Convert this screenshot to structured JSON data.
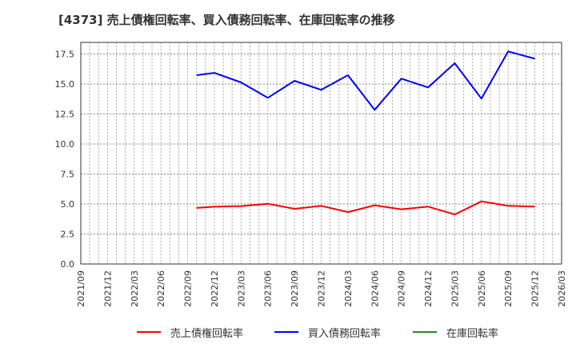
{
  "title": "[4373]  売上債権回転率、買入債務回転率、在庫回転率の推移",
  "chart_data": {
    "type": "line",
    "title": "[4373]  売上債権回転率、買入債務回転率、在庫回転率の推移",
    "xlabel": "",
    "ylabel": "",
    "ylim": [
      0,
      18.5
    ],
    "yticks": [
      "0.0",
      "2.5",
      "5.0",
      "7.5",
      "10.0",
      "12.5",
      "15.0",
      "17.5"
    ],
    "ytick_values": [
      0,
      2.5,
      5.0,
      7.5,
      10.0,
      12.5,
      15.0,
      17.5
    ],
    "xticks": [
      "2021/09",
      "2021/12",
      "2022/03",
      "2022/06",
      "2022/09",
      "2022/12",
      "2023/03",
      "2023/06",
      "2023/09",
      "2023/12",
      "2024/03",
      "2024/06",
      "2024/09",
      "2024/12",
      "2025/03",
      "2025/06",
      "2025/09",
      "2025/12",
      "2026/03"
    ],
    "xrange": [
      "2021/09",
      "2026/03"
    ],
    "grid": true,
    "legend_position": "bottom",
    "x": [
      "2022/10",
      "2022/12",
      "2023/03",
      "2023/06",
      "2023/09",
      "2023/12",
      "2024/03",
      "2024/06",
      "2024/09",
      "2024/12",
      "2025/03",
      "2025/06",
      "2025/09",
      "2025/12"
    ],
    "series": [
      {
        "name": "売上債権回転率",
        "color": "#ff0000",
        "values": [
          4.67,
          4.77,
          4.83,
          5.02,
          4.6,
          4.85,
          4.33,
          4.89,
          4.56,
          4.78,
          4.13,
          5.22,
          4.85,
          4.78
        ]
      },
      {
        "name": "買入債務回転率",
        "color": "#0000ff",
        "values": [
          15.73,
          15.93,
          15.13,
          13.85,
          15.27,
          14.51,
          15.73,
          12.85,
          15.45,
          14.71,
          16.73,
          13.78,
          17.71,
          17.11
        ]
      },
      {
        "name": "在庫回転率",
        "color": "#008000",
        "values": []
      }
    ]
  },
  "legend": [
    {
      "label": "売上債権回転率",
      "color": "#ff0000"
    },
    {
      "label": "買入債務回転率",
      "color": "#0000ff"
    },
    {
      "label": "在庫回転率",
      "color": "#228b22"
    }
  ]
}
